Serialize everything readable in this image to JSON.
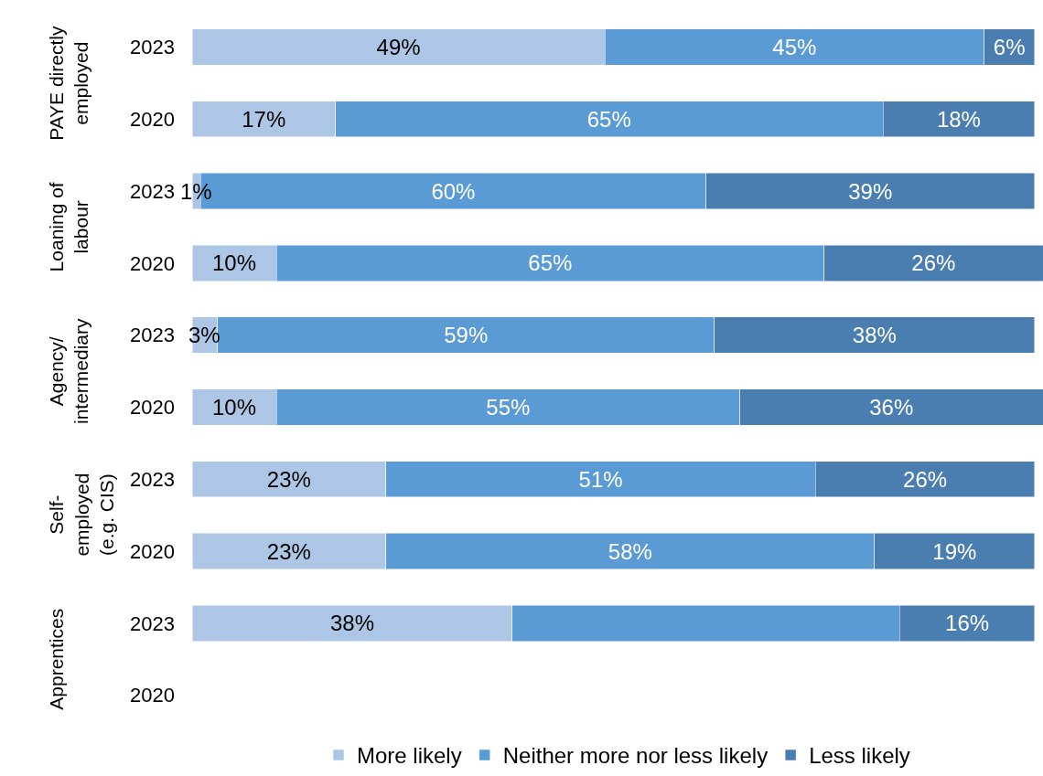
{
  "chart_data": {
    "type": "bar",
    "orientation": "horizontal",
    "stacked": true,
    "categories": [
      "2023",
      "2020",
      "2023",
      "2020",
      "2023",
      "2020",
      "2023",
      "2020",
      "2023",
      "2020"
    ],
    "series": [
      {
        "name": "More likely",
        "color": "#adc6e5",
        "values": [
          49,
          17,
          1,
          10,
          3,
          10,
          23,
          23,
          38,
          null
        ],
        "value_labels": [
          "49%",
          "17%",
          "1%",
          "10%",
          "3%",
          "10%",
          "23%",
          "23%",
          "38%",
          null
        ]
      },
      {
        "name": "Neither more nor less likely",
        "color": "#5b9bd5",
        "values": [
          45,
          65,
          60,
          65,
          59,
          55,
          51,
          58,
          46,
          null
        ],
        "value_labels": [
          "45%",
          "65%",
          "60%",
          "65%",
          "59%",
          "55%",
          "51%",
          "58%",
          null,
          null
        ]
      },
      {
        "name": "Less likely",
        "color": "#4a7eb0",
        "values": [
          6,
          18,
          39,
          26,
          38,
          36,
          26,
          19,
          16,
          null
        ],
        "value_labels": [
          "6%",
          "18%",
          "39%",
          "26%",
          "38%",
          "36%",
          "26%",
          "19%",
          "16%",
          null
        ]
      }
    ],
    "annotations": [
      "PAYE directly\nemployed",
      "Loaning of\nlabour",
      "Agency/\nintermediary",
      "Self-\nemployed\n(e.g. CIS)",
      "Apprentices"
    ],
    "legend": "bottom"
  }
}
